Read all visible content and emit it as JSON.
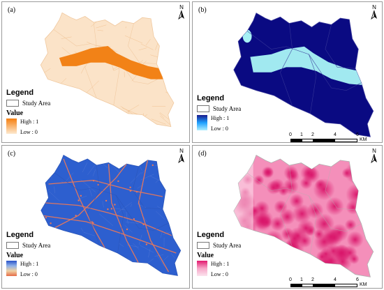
{
  "panels": [
    {
      "id": "a",
      "label": "(a)",
      "legend": {
        "title": "Legend",
        "study_area": "Study Area",
        "value_title": "Value",
        "high": "High : 1",
        "low": "Low : 0",
        "ramp": [
          "#f57f10",
          "#fde9cf"
        ]
      },
      "colors": {
        "fill": "#fbe3c8",
        "feature": "#f28217",
        "road": "#e9a766",
        "edge": "#f0c89e"
      }
    },
    {
      "id": "b",
      "label": "(b)",
      "legend": {
        "title": "Legend",
        "study_area": "Study Area",
        "value_title": "",
        "high": "High : 1",
        "low": "Low : 0",
        "ramp": [
          "#1a1a8c",
          "#1ea0ff",
          "#aeefff"
        ]
      },
      "colors": {
        "fill": "#0a0a82",
        "feature": "#a6f1f4",
        "road": "#55559e",
        "edge": "#3a3a9a"
      }
    },
    {
      "id": "c",
      "label": "(c)",
      "legend": {
        "title": "Legend",
        "study_area": "Study Area",
        "value_title": "Value",
        "high": "High : 1",
        "low": "Low : 0",
        "ramp": [
          "#2852c9",
          "#8fb0e8",
          "#f0d2a4",
          "#e56b46"
        ]
      },
      "colors": {
        "fill": "#2d5fcf",
        "feature": "#e8775a",
        "road": "#e8775a",
        "edge": "#2a55b8"
      }
    },
    {
      "id": "d",
      "label": "(d)",
      "legend": {
        "title": "Legend",
        "study_area": "Study Area",
        "value_title": "Value",
        "high": "High : 1",
        "low": "Low : 0",
        "ramp": [
          "#e2196f",
          "#f7a6c8",
          "#fbe3ee"
        ]
      },
      "colors": {
        "fill": "#f48fba",
        "feature": "#d9156a",
        "road": "#e35c96",
        "edge": "#b0b0b0"
      }
    }
  ],
  "north_label": "N",
  "scale": {
    "ticks": [
      "0",
      "1",
      "2",
      "4",
      "6"
    ],
    "unit": "KM"
  }
}
